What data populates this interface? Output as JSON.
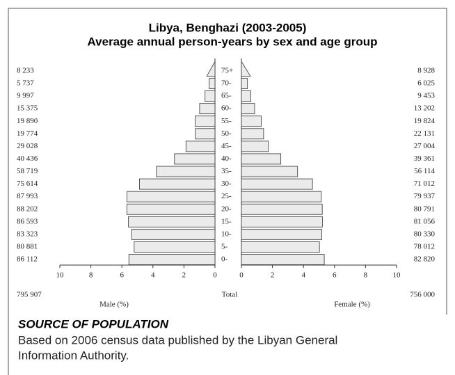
{
  "chart_data": {
    "type": "pyramid",
    "title": "Libya, Benghazi (2003-2005)",
    "subtitle": "Average annual person-years by sex and age group",
    "categories": [
      "0-",
      "5-",
      "10-",
      "15-",
      "20-",
      "25-",
      "30-",
      "35-",
      "40-",
      "45-",
      "50-",
      "55-",
      "60-",
      "65-",
      "70-",
      "75+"
    ],
    "series": [
      {
        "name": "Male (%)",
        "color": "#ebebeb",
        "values": [
          5.55,
          5.21,
          5.37,
          5.58,
          5.68,
          5.67,
          4.87,
          3.78,
          2.61,
          1.87,
          1.27,
          1.28,
          0.99,
          0.64,
          0.37,
          0.53
        ],
        "count_labels": [
          "86 112",
          "80 881",
          "83 323",
          "86 593",
          "88 202",
          "87 993",
          "75 614",
          "58 719",
          "40 436",
          "29 028",
          "19 774",
          "19 890",
          "15 375",
          "9 997",
          "5 737",
          "8 233"
        ],
        "total": "795 907"
      },
      {
        "name": "Female (%)",
        "color": "#ebebeb",
        "values": [
          5.34,
          5.03,
          5.18,
          5.22,
          5.21,
          5.15,
          4.58,
          3.62,
          2.54,
          1.74,
          1.43,
          1.28,
          0.85,
          0.61,
          0.39,
          0.58
        ],
        "count_labels": [
          "82 820",
          "78 012",
          "80 330",
          "81 056",
          "80 791",
          "79 937",
          "71 012",
          "56 114",
          "39 361",
          "27 004",
          "22 131",
          "19 824",
          "13 202",
          "9 453",
          "6 025",
          "8 928"
        ],
        "total": "756 000"
      }
    ],
    "total_label": "Total",
    "xlim": [
      0,
      10
    ],
    "xticks": [
      0,
      2,
      4,
      6,
      8,
      10
    ]
  },
  "source": {
    "heading": "SOURCE OF POPULATION",
    "text_lines": [
      "Based on 2006 census data published by the Libyan General",
      "Information Authority."
    ]
  }
}
